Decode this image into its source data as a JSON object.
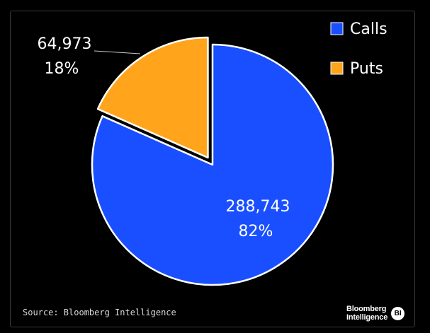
{
  "chart_data": {
    "type": "pie",
    "categories": [
      "Calls",
      "Puts"
    ],
    "values": [
      288743,
      64973
    ],
    "percent_labels": [
      "82%",
      "18%"
    ],
    "value_labels": [
      "288,743",
      "64,973"
    ],
    "colors": [
      "#1a4fff",
      "#ffa41b"
    ],
    "exploded": "Puts",
    "legend_position": "top-right",
    "source": "Source: Bloomberg Intelligence"
  },
  "logo": {
    "line1": "Bloomberg",
    "line2": "Intelligence",
    "badge": "BI"
  }
}
